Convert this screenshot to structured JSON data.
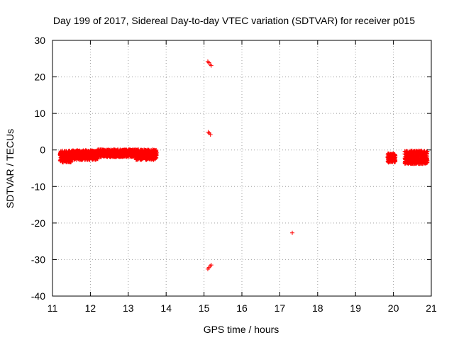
{
  "chart_data": {
    "type": "scatter",
    "title": "Day 199 of 2017, Sidereal Day-to-day VTEC variation (SDTVAR) for receiver p015",
    "xlabel": "GPS time / hours",
    "ylabel": "SDTVAR / TECUs",
    "xlim": [
      11,
      21
    ],
    "ylim": [
      -40,
      30
    ],
    "xticks": [
      11,
      12,
      13,
      14,
      15,
      16,
      17,
      18,
      19,
      20,
      21
    ],
    "yticks": [
      -40,
      -30,
      -20,
      -10,
      0,
      10,
      20,
      30
    ],
    "grid": true,
    "grid_style": "dotted",
    "marker": "+",
    "marker_color": "#ff0000",
    "segments": [
      {
        "x_start": 11.2,
        "x_end": 11.5,
        "y_center": -1.8,
        "y_spread": 1.6
      },
      {
        "x_start": 11.5,
        "x_end": 12.2,
        "y_center": -1.4,
        "y_spread": 1.3
      },
      {
        "x_start": 12.2,
        "x_end": 13.2,
        "y_center": -0.9,
        "y_spread": 1.0
      },
      {
        "x_start": 13.2,
        "x_end": 13.75,
        "y_center": -1.3,
        "y_spread": 1.4
      },
      {
        "x_start": 19.85,
        "x_end": 20.05,
        "y_center": -2.2,
        "y_spread": 1.2
      },
      {
        "x_start": 20.3,
        "x_end": 20.9,
        "y_center": -2.0,
        "y_spread": 1.8
      }
    ],
    "points": [
      {
        "x": 15.1,
        "y": 24.2
      },
      {
        "x": 15.13,
        "y": 23.9
      },
      {
        "x": 15.16,
        "y": 23.5
      },
      {
        "x": 15.19,
        "y": 23.1
      },
      {
        "x": 15.11,
        "y": 4.9
      },
      {
        "x": 15.14,
        "y": 4.6
      },
      {
        "x": 15.17,
        "y": 4.2
      },
      {
        "x": 15.1,
        "y": -32.6
      },
      {
        "x": 15.13,
        "y": -32.2
      },
      {
        "x": 15.16,
        "y": -31.8
      },
      {
        "x": 15.19,
        "y": -31.5
      },
      {
        "x": 17.33,
        "y": -22.7
      }
    ]
  }
}
